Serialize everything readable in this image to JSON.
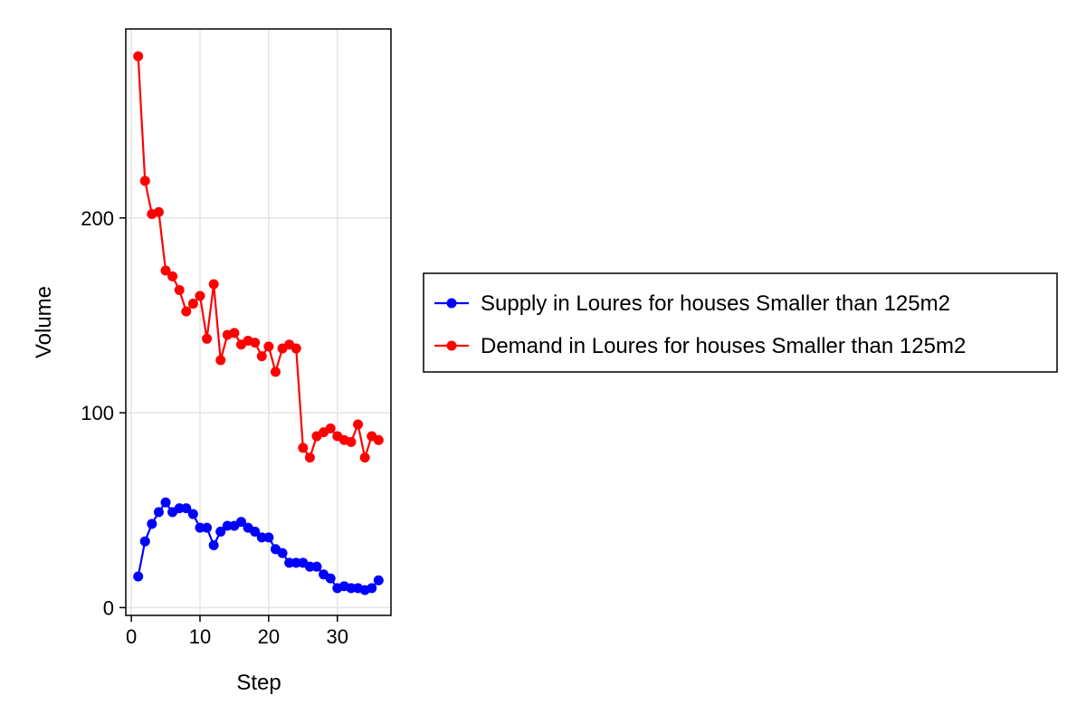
{
  "chart_data": {
    "type": "line",
    "xlabel": "Step",
    "ylabel": "Volume",
    "xlim": [
      -0.8,
      37.8
    ],
    "ylim": [
      -4,
      297
    ],
    "xticks": [
      0,
      10,
      20,
      30
    ],
    "yticks": [
      0,
      100,
      200
    ],
    "grid": true,
    "legend_position": "right",
    "x": [
      1,
      2,
      3,
      4,
      5,
      6,
      7,
      8,
      9,
      10,
      11,
      12,
      13,
      14,
      15,
      16,
      17,
      18,
      19,
      20,
      21,
      22,
      23,
      24,
      25,
      26,
      27,
      28,
      29,
      30,
      31,
      32,
      33,
      34,
      35,
      36
    ],
    "series": [
      {
        "name": "Supply in Loures for houses Smaller than 125m2",
        "color": "#0000ff",
        "values": [
          16,
          34,
          43,
          49,
          54,
          49,
          51,
          51,
          48,
          41,
          41,
          32,
          39,
          42,
          42,
          44,
          41,
          39,
          36,
          36,
          30,
          28,
          23,
          23,
          23,
          21,
          21,
          17,
          15,
          10,
          11,
          10,
          10,
          9,
          10,
          14
        ]
      },
      {
        "name": "Demand in Loures for houses Smaller than 125m2",
        "color": "#ff0000",
        "values": [
          283,
          219,
          202,
          203,
          173,
          170,
          163,
          152,
          156,
          160,
          138,
          166,
          127,
          140,
          141,
          135,
          137,
          136,
          129,
          134,
          121,
          133,
          135,
          133,
          82,
          77,
          88,
          90,
          92,
          88,
          86,
          85,
          94,
          77,
          88,
          86
        ]
      }
    ]
  }
}
